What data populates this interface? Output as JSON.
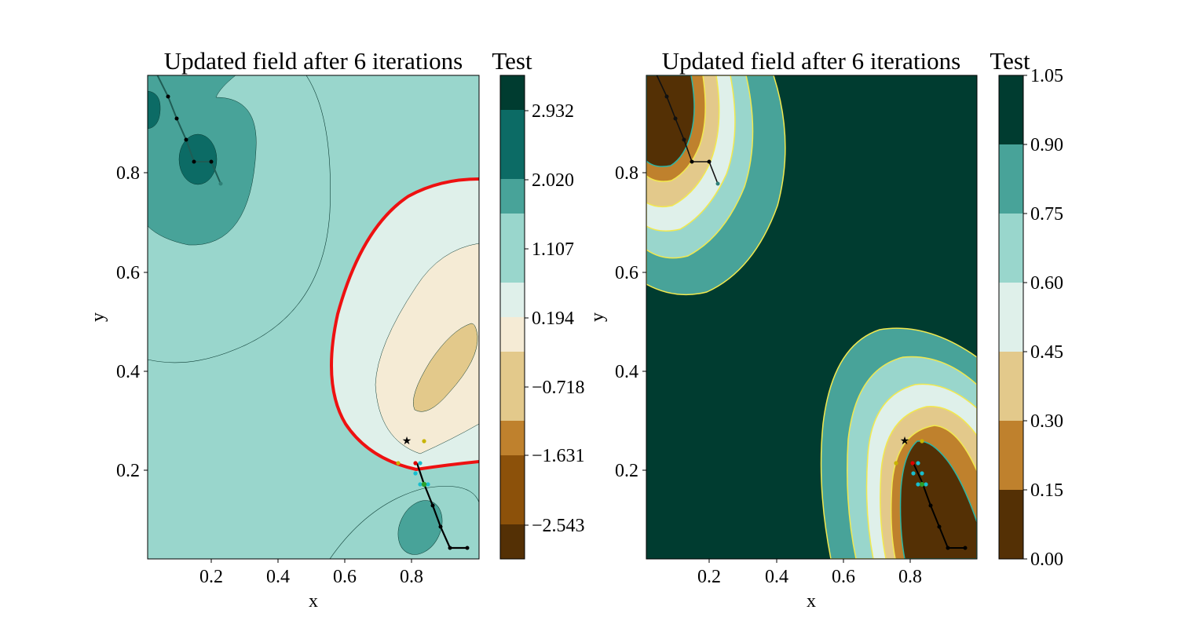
{
  "figure": {
    "left_panel": {
      "title": "Updated field after 6 iterations",
      "xlabel": "x",
      "ylabel": "y",
      "colorbar_label": "Test"
    },
    "right_panel": {
      "title": "Updated field after 6 iterations",
      "xlabel": "x",
      "ylabel": "y",
      "colorbar_label": "Test"
    }
  },
  "chart_data": [
    {
      "type": "contour",
      "title": "Updated field after 6 iterations",
      "xlabel": "x",
      "ylabel": "y",
      "xlim": [
        0.0,
        1.0
      ],
      "ylim": [
        0.0,
        1.0
      ],
      "xticks": [
        "0.2",
        "0.4",
        "0.6",
        "0.8"
      ],
      "yticks": [
        "0.2",
        "0.4",
        "0.6",
        "0.8"
      ],
      "colorbar": {
        "label": "Test",
        "range": [
          -3.5,
          3.5
        ],
        "tick_values": [
          -2.543,
          -1.631,
          -0.718,
          0.194,
          1.107,
          2.02,
          2.932
        ],
        "tick_labels": [
          "−2.543",
          "−1.631",
          "−0.718",
          "0.194",
          "1.107",
          "2.020",
          "2.932"
        ],
        "level_colors": [
          "#543005",
          "#8c510a",
          "#bf812d",
          "#e3c98b",
          "#f5ebd5",
          "#dff0ea",
          "#99d6cc",
          "#48a399",
          "#0c6b65",
          "#003c30"
        ]
      },
      "zero_contour_color": "#ee1111",
      "path_points": [
        [
          0.04,
          0.99
        ],
        [
          0.07,
          0.95
        ],
        [
          0.1,
          0.9
        ],
        [
          0.13,
          0.86
        ],
        [
          0.15,
          0.82
        ],
        [
          0.2,
          0.82
        ],
        [
          0.23,
          0.78
        ]
      ],
      "path_points_2": [
        [
          0.77,
          0.26
        ],
        [
          0.8,
          0.22
        ],
        [
          0.82,
          0.18
        ],
        [
          0.85,
          0.13
        ],
        [
          0.88,
          0.09
        ],
        [
          0.9,
          0.04
        ],
        [
          0.95,
          0.04
        ]
      ],
      "markers": {
        "star": [
          0.77,
          0.26
        ],
        "yellow": [
          [
            0.83,
            0.26
          ],
          [
            0.75,
            0.22
          ]
        ],
        "cyan": [
          [
            0.8,
            0.22
          ],
          [
            0.82,
            0.2
          ],
          [
            0.8,
            0.18
          ],
          [
            0.84,
            0.18
          ]
        ],
        "red": [
          [
            0.79,
            0.22
          ]
        ],
        "green": [
          [
            0.82,
            0.175
          ]
        ]
      }
    },
    {
      "type": "contour",
      "title": "Updated field after 6 iterations",
      "xlabel": "x",
      "ylabel": "y",
      "xlim": [
        0.0,
        1.0
      ],
      "ylim": [
        0.0,
        1.0
      ],
      "xticks": [
        "0.2",
        "0.4",
        "0.6",
        "0.8"
      ],
      "yticks": [
        "0.2",
        "0.4",
        "0.6",
        "0.8"
      ],
      "colorbar": {
        "label": "Test",
        "range": [
          0.0,
          1.05
        ],
        "tick_values": [
          0.0,
          0.15,
          0.3,
          0.45,
          0.6,
          0.75,
          0.9,
          1.05
        ],
        "tick_labels": [
          "0.00",
          "0.15",
          "0.30",
          "0.45",
          "0.60",
          "0.75",
          "0.90",
          "1.05"
        ],
        "level_colors": [
          "#543005",
          "#bf812d",
          "#e3c98b",
          "#dff0ea",
          "#99d6cc",
          "#48a399",
          "#003c30"
        ]
      },
      "contour_line_color": "#f2e94e",
      "path_points": [
        [
          0.04,
          0.99
        ],
        [
          0.07,
          0.95
        ],
        [
          0.1,
          0.9
        ],
        [
          0.13,
          0.86
        ],
        [
          0.15,
          0.82
        ],
        [
          0.2,
          0.82
        ],
        [
          0.23,
          0.78
        ]
      ],
      "path_points_2": [
        [
          0.77,
          0.26
        ],
        [
          0.8,
          0.22
        ],
        [
          0.82,
          0.18
        ],
        [
          0.85,
          0.13
        ],
        [
          0.88,
          0.09
        ],
        [
          0.9,
          0.04
        ],
        [
          0.95,
          0.04
        ]
      ],
      "markers": {
        "star": [
          0.77,
          0.26
        ],
        "yellow": [
          [
            0.83,
            0.26
          ],
          [
            0.75,
            0.22
          ]
        ],
        "cyan": [
          [
            0.8,
            0.22
          ],
          [
            0.82,
            0.2
          ],
          [
            0.8,
            0.18
          ],
          [
            0.84,
            0.18
          ]
        ],
        "red": [
          [
            0.79,
            0.22
          ]
        ],
        "green": [
          [
            0.82,
            0.175
          ]
        ]
      }
    }
  ]
}
